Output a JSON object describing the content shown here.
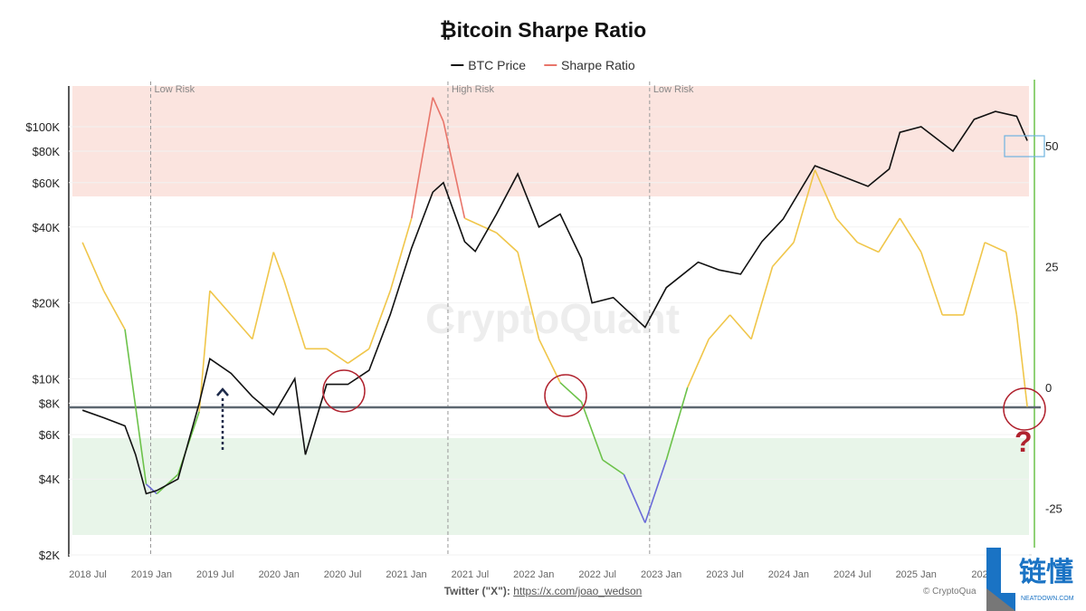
{
  "title": "₿itcoin Sharpe Ratio",
  "legend": [
    {
      "label": "BTC Price",
      "color": "#111111"
    },
    {
      "label": "Sharpe Ratio",
      "color": "#e8756a"
    }
  ],
  "watermark": "CryptoQuant",
  "credit_label": "Twitter (\"X\"):",
  "credit_link": "https://x.com/joao_wedson",
  "copyright": "© CryptoQua",
  "logo_text": "链懂",
  "logo_sub": "NEATDOWN.COM",
  "question_mark": "?",
  "chart_data": {
    "type": "line",
    "title": "₿itcoin Sharpe Ratio",
    "left_axis": {
      "scale": "log",
      "ticks": [
        2000,
        4000,
        6000,
        8000,
        10000,
        20000,
        40000,
        60000,
        80000,
        100000
      ],
      "tick_labels": [
        "$2K",
        "$4K",
        "$6K",
        "$8K",
        "$10K",
        "$20K",
        "$40K",
        "$60K",
        "$80K",
        "$100K"
      ]
    },
    "right_axis": {
      "ticks": [
        -25,
        0,
        25,
        50
      ],
      "tick_labels": [
        "-25",
        "0",
        "25",
        "50"
      ]
    },
    "x_tick_labels": [
      "2018 Jul",
      "2019 Jan",
      "2019 Jul",
      "2020 Jan",
      "2020 Jul",
      "2021 Jan",
      "2021 Jul",
      "2022 Jan",
      "2022 Jul",
      "2023 Jan",
      "2023 Jul",
      "2024 Jan",
      "2024 Jul",
      "2025 Jan",
      "202"
    ],
    "zones": [
      {
        "label": "Low Risk",
        "date": "2018-12"
      },
      {
        "label": "High Risk",
        "date": "2021-04"
      },
      {
        "label": "Low Risk",
        "date": "2022-11"
      }
    ],
    "colors": {
      "high": "#e8756a",
      "neutral": "#f0c64a",
      "low": "#6cc24a",
      "extreme_low": "#6a6ad8",
      "price": "#111111",
      "high_zone": "#fbe4df",
      "low_zone": "#e8f5e9"
    },
    "series": [
      {
        "name": "BTC Price",
        "axis": "left",
        "points": [
          [
            "2018-06",
            7500
          ],
          [
            "2018-08",
            7000
          ],
          [
            "2018-10",
            6500
          ],
          [
            "2018-11",
            5000
          ],
          [
            "2018-12",
            3500
          ],
          [
            "2019-01",
            3600
          ],
          [
            "2019-03",
            4000
          ],
          [
            "2019-05",
            8000
          ],
          [
            "2019-06",
            12000
          ],
          [
            "2019-08",
            10500
          ],
          [
            "2019-10",
            8500
          ],
          [
            "2019-12",
            7200
          ],
          [
            "2020-02",
            10000
          ],
          [
            "2020-03",
            5000
          ],
          [
            "2020-05",
            9500
          ],
          [
            "2020-07",
            9500
          ],
          [
            "2020-09",
            10800
          ],
          [
            "2020-11",
            18000
          ],
          [
            "2021-01",
            33000
          ],
          [
            "2021-03",
            55000
          ],
          [
            "2021-04",
            60000
          ],
          [
            "2021-06",
            35000
          ],
          [
            "2021-07",
            32000
          ],
          [
            "2021-09",
            45000
          ],
          [
            "2021-11",
            65000
          ],
          [
            "2022-01",
            40000
          ],
          [
            "2022-03",
            45000
          ],
          [
            "2022-05",
            30000
          ],
          [
            "2022-06",
            20000
          ],
          [
            "2022-08",
            21000
          ],
          [
            "2022-11",
            16000
          ],
          [
            "2023-01",
            23000
          ],
          [
            "2023-04",
            29000
          ],
          [
            "2023-06",
            27000
          ],
          [
            "2023-08",
            26000
          ],
          [
            "2023-10",
            35000
          ],
          [
            "2023-12",
            43000
          ],
          [
            "2024-03",
            70000
          ],
          [
            "2024-05",
            65000
          ],
          [
            "2024-08",
            58000
          ],
          [
            "2024-10",
            68000
          ],
          [
            "2024-11",
            95000
          ],
          [
            "2025-01",
            100000
          ],
          [
            "2025-04",
            80000
          ],
          [
            "2025-06",
            107000
          ],
          [
            "2025-08",
            115000
          ],
          [
            "2025-10",
            110000
          ],
          [
            "2025-11",
            88000
          ]
        ]
      },
      {
        "name": "Sharpe Ratio",
        "axis": "right",
        "points": [
          [
            "2018-06",
            30
          ],
          [
            "2018-08",
            20
          ],
          [
            "2018-10",
            12
          ],
          [
            "2018-12",
            -20
          ],
          [
            "2019-01",
            -22
          ],
          [
            "2019-03",
            -18
          ],
          [
            "2019-05",
            -5
          ],
          [
            "2019-06",
            20
          ],
          [
            "2019-08",
            15
          ],
          [
            "2019-10",
            10
          ],
          [
            "2019-12",
            28
          ],
          [
            "2020-01",
            22
          ],
          [
            "2020-03",
            8
          ],
          [
            "2020-05",
            8
          ],
          [
            "2020-07",
            5
          ],
          [
            "2020-09",
            8
          ],
          [
            "2020-11",
            20
          ],
          [
            "2021-01",
            35
          ],
          [
            "2021-03",
            60
          ],
          [
            "2021-04",
            55
          ],
          [
            "2021-06",
            35
          ],
          [
            "2021-09",
            32
          ],
          [
            "2021-11",
            28
          ],
          [
            "2022-01",
            10
          ],
          [
            "2022-03",
            1
          ],
          [
            "2022-05",
            -3
          ],
          [
            "2022-07",
            -15
          ],
          [
            "2022-09",
            -18
          ],
          [
            "2022-11",
            -28
          ],
          [
            "2023-01",
            -15
          ],
          [
            "2023-03",
            0
          ],
          [
            "2023-05",
            10
          ],
          [
            "2023-07",
            15
          ],
          [
            "2023-09",
            10
          ],
          [
            "2023-11",
            25
          ],
          [
            "2024-01",
            30
          ],
          [
            "2024-03",
            45
          ],
          [
            "2024-05",
            35
          ],
          [
            "2024-07",
            30
          ],
          [
            "2024-09",
            28
          ],
          [
            "2024-11",
            35
          ],
          [
            "2025-01",
            28
          ],
          [
            "2025-03",
            15
          ],
          [
            "2025-05",
            15
          ],
          [
            "2025-07",
            30
          ],
          [
            "2025-09",
            28
          ],
          [
            "2025-10",
            15
          ],
          [
            "2025-11",
            -4
          ]
        ]
      }
    ]
  }
}
